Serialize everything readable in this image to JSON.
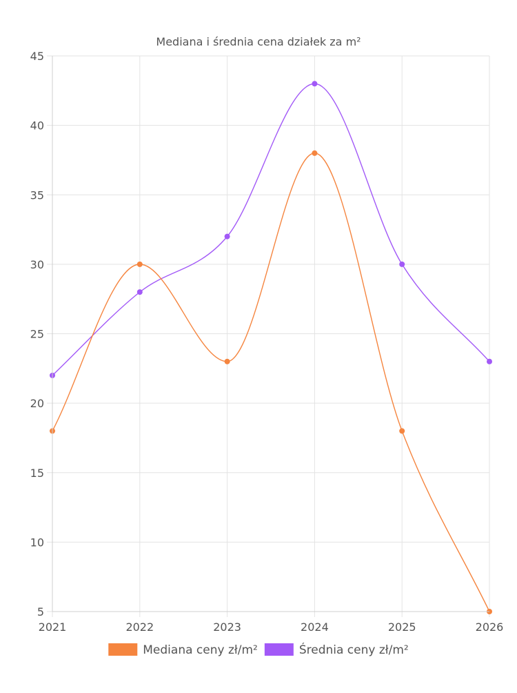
{
  "chart_data": {
    "type": "line",
    "title": "Mediana i średnia cena działek za m²",
    "xlabel": "",
    "ylabel": "",
    "categories": [
      "2021",
      "2022",
      "2023",
      "2024",
      "2025",
      "2026"
    ],
    "ylim": [
      5,
      45
    ],
    "yticks": [
      "5",
      "10",
      "15",
      "20",
      "25",
      "30",
      "35",
      "40",
      "45"
    ],
    "grid": true,
    "legend_position": "bottom",
    "series": [
      {
        "name": "Mediana ceny zł/m²",
        "color": "#f5853f",
        "values": [
          18,
          30,
          23,
          38,
          18,
          5
        ]
      },
      {
        "name": "Średnia ceny zł/m²",
        "color": "#a259f7",
        "values": [
          22,
          28,
          32,
          43,
          30,
          23
        ]
      }
    ]
  }
}
